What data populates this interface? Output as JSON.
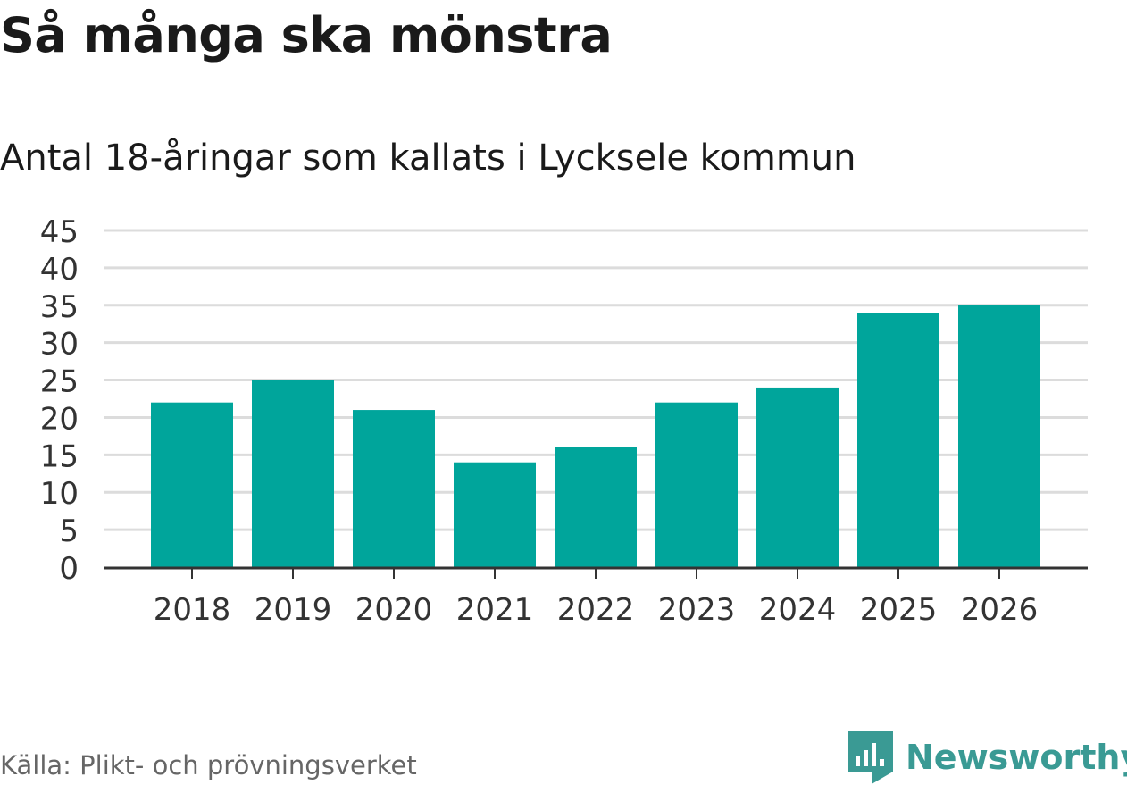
{
  "title": "Så många ska mönstra",
  "subtitle": "Antal 18-åringar som kallats i Lycksele kommun",
  "source": "Källa: Plikt- och prövningsverket",
  "logo": {
    "text": "Newsworthy",
    "icon": "newsworthy-logo-icon",
    "color": "#3a9a94"
  },
  "colors": {
    "bar": "#00a59b",
    "grid": "#dcdcdc",
    "axis": "#333333",
    "tick_text": "#333333"
  },
  "chart_data": {
    "type": "bar",
    "categories": [
      "2018",
      "2019",
      "2020",
      "2021",
      "2022",
      "2023",
      "2024",
      "2025",
      "2026"
    ],
    "values": [
      22,
      25,
      21,
      14,
      16,
      22,
      24,
      34,
      35
    ],
    "ylim": [
      0,
      45
    ],
    "yticks": [
      "0",
      "5",
      "10",
      "15",
      "20",
      "25",
      "30",
      "35",
      "40",
      "45"
    ],
    "grid": true,
    "xlabel": "",
    "ylabel": ""
  }
}
